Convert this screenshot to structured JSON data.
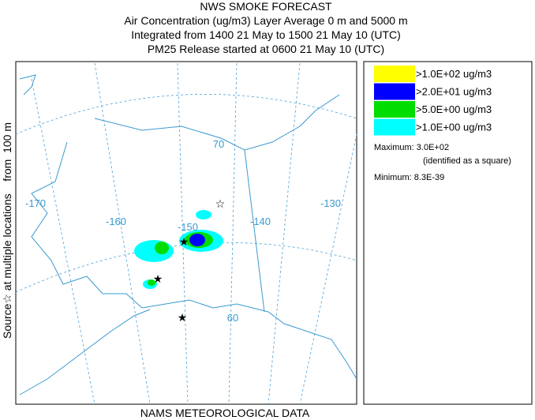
{
  "header": {
    "lines": [
      "NWS SMOKE FORECAST",
      "Air Concentration (ug/m3) Layer Average    0 m and  5000 m",
      "Integrated from 1400 21 May to 1500 21 May 10 (UTC)",
      "PM25 Release started at 0600 21 May 10 (UTC)"
    ]
  },
  "side_label": "Source☆ at multiple locations    from  100 m",
  "footer": "NAMS METEOROLOGICAL DATA",
  "legend": {
    "items": [
      {
        "label": ">1.0E+02 ug/m3",
        "color": "#ffff00"
      },
      {
        "label": ">2.0E+01 ug/m3",
        "color": "#0000ff"
      },
      {
        "label": ">5.0E+00 ug/m3",
        "color": "#00dd00"
      },
      {
        "label": ">1.0E+00 ug/m3",
        "color": "#00ffff"
      }
    ],
    "maximum": "Maximum: 3.0E+02",
    "max_note": "(identified as a square)",
    "minimum": "Minimum: 8.3E-39"
  },
  "map": {
    "labels": [
      "-170",
      "-160",
      "-150",
      "-140",
      "-130",
      "70",
      "60"
    ]
  }
}
